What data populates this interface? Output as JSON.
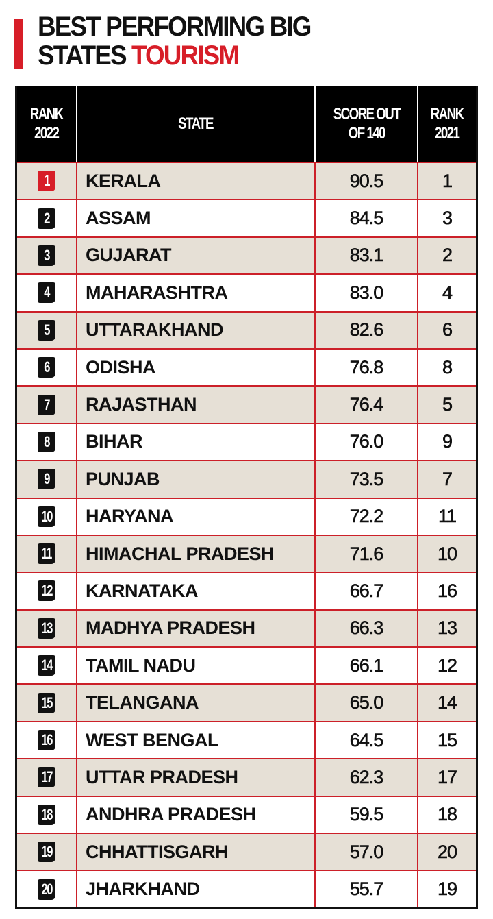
{
  "title": {
    "line1": "BEST PERFORMING BIG",
    "line2_prefix": "STATES ",
    "line2_accent": "TOURISM"
  },
  "colors": {
    "accent": "#d71e28",
    "header_bg": "#000000",
    "row_shade": "#e6e0d6",
    "grid": "#cc2029"
  },
  "table": {
    "headers": {
      "rank2022": "RANK\n2022",
      "state": "STATE",
      "score": "SCORE OUT\nOF 140",
      "rank2021": "RANK\n2021"
    },
    "rows": [
      {
        "rank": "1",
        "state": "KERALA",
        "score": "90.5",
        "prev": "1"
      },
      {
        "rank": "2",
        "state": "ASSAM",
        "score": "84.5",
        "prev": "3"
      },
      {
        "rank": "3",
        "state": "GUJARAT",
        "score": "83.1",
        "prev": "2"
      },
      {
        "rank": "4",
        "state": "MAHARASHTRA",
        "score": "83.0",
        "prev": "4"
      },
      {
        "rank": "5",
        "state": "UTTARAKHAND",
        "score": "82.6",
        "prev": "6"
      },
      {
        "rank": "6",
        "state": "ODISHA",
        "score": "76.8",
        "prev": "8"
      },
      {
        "rank": "7",
        "state": "RAJASTHAN",
        "score": "76.4",
        "prev": "5"
      },
      {
        "rank": "8",
        "state": "BIHAR",
        "score": "76.0",
        "prev": "9"
      },
      {
        "rank": "9",
        "state": "PUNJAB",
        "score": "73.5",
        "prev": "7"
      },
      {
        "rank": "10",
        "state": "HARYANA",
        "score": "72.2",
        "prev": "11"
      },
      {
        "rank": "11",
        "state": "HIMACHAL PRADESH",
        "score": "71.6",
        "prev": "10"
      },
      {
        "rank": "12",
        "state": "KARNATAKA",
        "score": "66.7",
        "prev": "16"
      },
      {
        "rank": "13",
        "state": "MADHYA PRADESH",
        "score": "66.3",
        "prev": "13"
      },
      {
        "rank": "14",
        "state": "TAMIL NADU",
        "score": "66.1",
        "prev": "12"
      },
      {
        "rank": "15",
        "state": "TELANGANA",
        "score": "65.0",
        "prev": "14"
      },
      {
        "rank": "16",
        "state": "WEST BENGAL",
        "score": "64.5",
        "prev": "15"
      },
      {
        "rank": "17",
        "state": "UTTAR PRADESH",
        "score": "62.3",
        "prev": "17"
      },
      {
        "rank": "18",
        "state": "ANDHRA PRADESH",
        "score": "59.5",
        "prev": "18"
      },
      {
        "rank": "19",
        "state": "CHHATTISGARH",
        "score": "57.0",
        "prev": "20"
      },
      {
        "rank": "20",
        "state": "JHARKHAND",
        "score": "55.7",
        "prev": "19"
      }
    ]
  }
}
